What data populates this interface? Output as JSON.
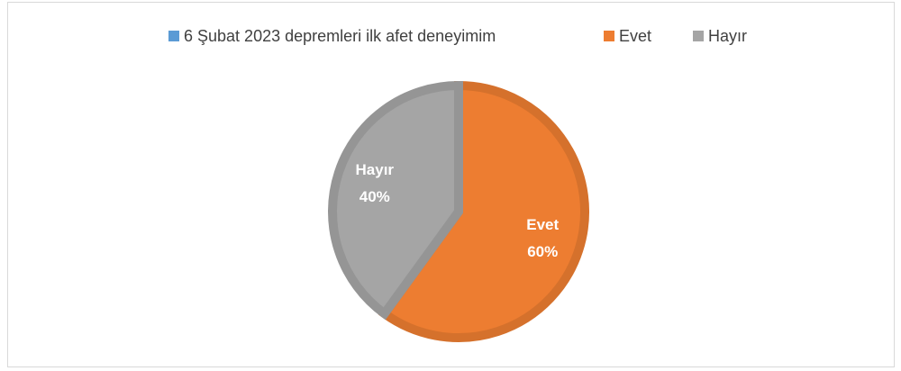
{
  "chart_data": {
    "type": "pie",
    "categories": [
      "6 Şubat 2023 depremleri ilk afet deneyimim",
      "Evet",
      "Hayır"
    ],
    "values": [
      0,
      60,
      40
    ],
    "value_labels": [
      null,
      "60%",
      "40%"
    ],
    "colors": [
      "#5b9bd5",
      "#ed7d31",
      "#a5a5a5"
    ],
    "legend": "top"
  }
}
